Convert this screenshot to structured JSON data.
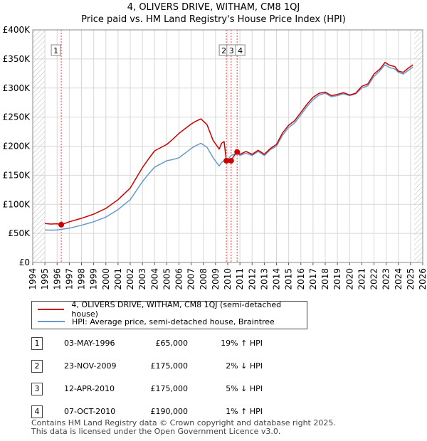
{
  "title_line1": "4, OLIVERS DRIVE, WITHAM, CM8 1QJ",
  "title_line2": "Price paid vs. HM Land Registry's House Price Index (HPI)",
  "colors": {
    "price": "#cc0000",
    "hpi": "#6699cc",
    "grid": "#d8d8d8",
    "sale_line": "#dd4444"
  },
  "chart_data": {
    "type": "line",
    "xlim": [
      1994,
      2026
    ],
    "ylim": [
      0,
      400000
    ],
    "x_ticks": [
      "1994",
      "1995",
      "1996",
      "1997",
      "1998",
      "1999",
      "2000",
      "2001",
      "2002",
      "2003",
      "2004",
      "2005",
      "2006",
      "2007",
      "2008",
      "2009",
      "2010",
      "2011",
      "2012",
      "2013",
      "2014",
      "2015",
      "2016",
      "2017",
      "2018",
      "2019",
      "2020",
      "2021",
      "2022",
      "2023",
      "2024",
      "2025",
      "2026"
    ],
    "y_ticks": [
      {
        "value": 0,
        "label": "£0"
      },
      {
        "value": 50000,
        "label": "£50K"
      },
      {
        "value": 100000,
        "label": "£100K"
      },
      {
        "value": 150000,
        "label": "£150K"
      },
      {
        "value": 200000,
        "label": "£200K"
      },
      {
        "value": 250000,
        "label": "£250K"
      },
      {
        "value": 300000,
        "label": "£300K"
      },
      {
        "value": 350000,
        "label": "£350K"
      },
      {
        "value": 400000,
        "label": "£400K"
      }
    ],
    "data_end": 2025.3,
    "series": [
      {
        "name": "4, OLIVERS DRIVE, WITHAM, CM8 1QJ (semi-detached house)",
        "x": [
          1995,
          1995.5,
          1996,
          1996.34,
          1997,
          1998,
          1999,
          2000,
          2001,
          2002,
          2003,
          2003.5,
          2004,
          2005,
          2005.5,
          2006,
          2007,
          2007.3,
          2007.8,
          2008.3,
          2008.8,
          2009.3,
          2009.5,
          2009.7,
          2009.89,
          2010,
          2010.28,
          2010.5,
          2010.77,
          2011,
          2011.5,
          2012,
          2012.5,
          2013,
          2013.5,
          2014,
          2014.5,
          2015,
          2015.5,
          2016,
          2016.5,
          2017,
          2017.5,
          2018,
          2018.5,
          2019,
          2019.5,
          2020,
          2020.5,
          2021,
          2021.5,
          2022,
          2022.5,
          2022.9,
          2023.3,
          2023.7,
          2024,
          2024.4,
          2024.8,
          2025.2
        ],
        "values": [
          67000,
          66000,
          66500,
          65000,
          70000,
          76000,
          83000,
          93000,
          108000,
          128000,
          163000,
          178000,
          192000,
          203000,
          212000,
          222000,
          238000,
          242000,
          247000,
          237000,
          210000,
          195000,
          205000,
          208000,
          175000,
          172000,
          175000,
          183000,
          190000,
          186000,
          191000,
          186000,
          193000,
          186000,
          196000,
          203000,
          223000,
          236000,
          244000,
          258000,
          272000,
          284000,
          291000,
          293000,
          287000,
          289000,
          292000,
          288000,
          291000,
          303000,
          307000,
          324000,
          333000,
          344000,
          339000,
          337000,
          329000,
          327000,
          334000,
          340000
        ]
      },
      {
        "name": "HPI: Average price, semi-detached house, Braintree",
        "x": [
          1995,
          1995.5,
          1996,
          1997,
          1998,
          1999,
          2000,
          2001,
          2002,
          2003,
          2003.5,
          2004,
          2005,
          2005.5,
          2006,
          2007,
          2007.3,
          2007.8,
          2008.3,
          2008.8,
          2009.3,
          2009.5,
          2009.89,
          2010,
          2010.28,
          2010.5,
          2010.77,
          2011,
          2011.5,
          2012,
          2012.5,
          2013,
          2013.5,
          2014,
          2014.5,
          2015,
          2015.5,
          2016,
          2016.5,
          2017,
          2017.5,
          2018,
          2018.5,
          2019,
          2019.5,
          2020,
          2020.5,
          2021,
          2021.5,
          2022,
          2022.5,
          2022.9,
          2023.3,
          2023.7,
          2024,
          2024.4,
          2024.8,
          2025.2
        ],
        "values": [
          56000,
          55500,
          56000,
          59000,
          64000,
          70000,
          78000,
          91000,
          108000,
          139000,
          152000,
          164000,
          175000,
          177000,
          180000,
          196000,
          200000,
          205000,
          198000,
          180000,
          166000,
          172000,
          178000,
          177000,
          184000,
          186000,
          188000,
          184000,
          188000,
          184000,
          191000,
          184000,
          194000,
          200000,
          219000,
          232000,
          240000,
          254000,
          268000,
          280000,
          288000,
          291000,
          285000,
          287000,
          290000,
          287000,
          290000,
          300000,
          304000,
          320000,
          330000,
          340000,
          335000,
          333000,
          327000,
          324000,
          330000,
          336000
        ]
      }
    ],
    "sales": [
      {
        "label": "1",
        "x": 1996.34,
        "price": 65000
      },
      {
        "label": "2",
        "x": 2009.89,
        "price": 175000
      },
      {
        "label": "3",
        "x": 2010.28,
        "price": 175000
      },
      {
        "label": "4",
        "x": 2010.77,
        "price": 190000
      }
    ]
  },
  "legend": {
    "price_label": "4, OLIVERS DRIVE, WITHAM, CM8 1QJ (semi-detached house)",
    "hpi_label": "HPI: Average price, semi-detached house, Braintree"
  },
  "table": [
    {
      "num": "1",
      "date": "03-MAY-1996",
      "price": "£65,000",
      "hpi": "19% ↑ HPI"
    },
    {
      "num": "2",
      "date": "23-NOV-2009",
      "price": "£175,000",
      "hpi": "2% ↓ HPI"
    },
    {
      "num": "3",
      "date": "12-APR-2010",
      "price": "£175,000",
      "hpi": "5% ↓ HPI"
    },
    {
      "num": "4",
      "date": "07-OCT-2010",
      "price": "£190,000",
      "hpi": "1% ↑ HPI"
    }
  ],
  "footer_line1": "Contains HM Land Registry data © Crown copyright and database right 2025.",
  "footer_line2": "This data is licensed under the Open Government Licence v3.0."
}
